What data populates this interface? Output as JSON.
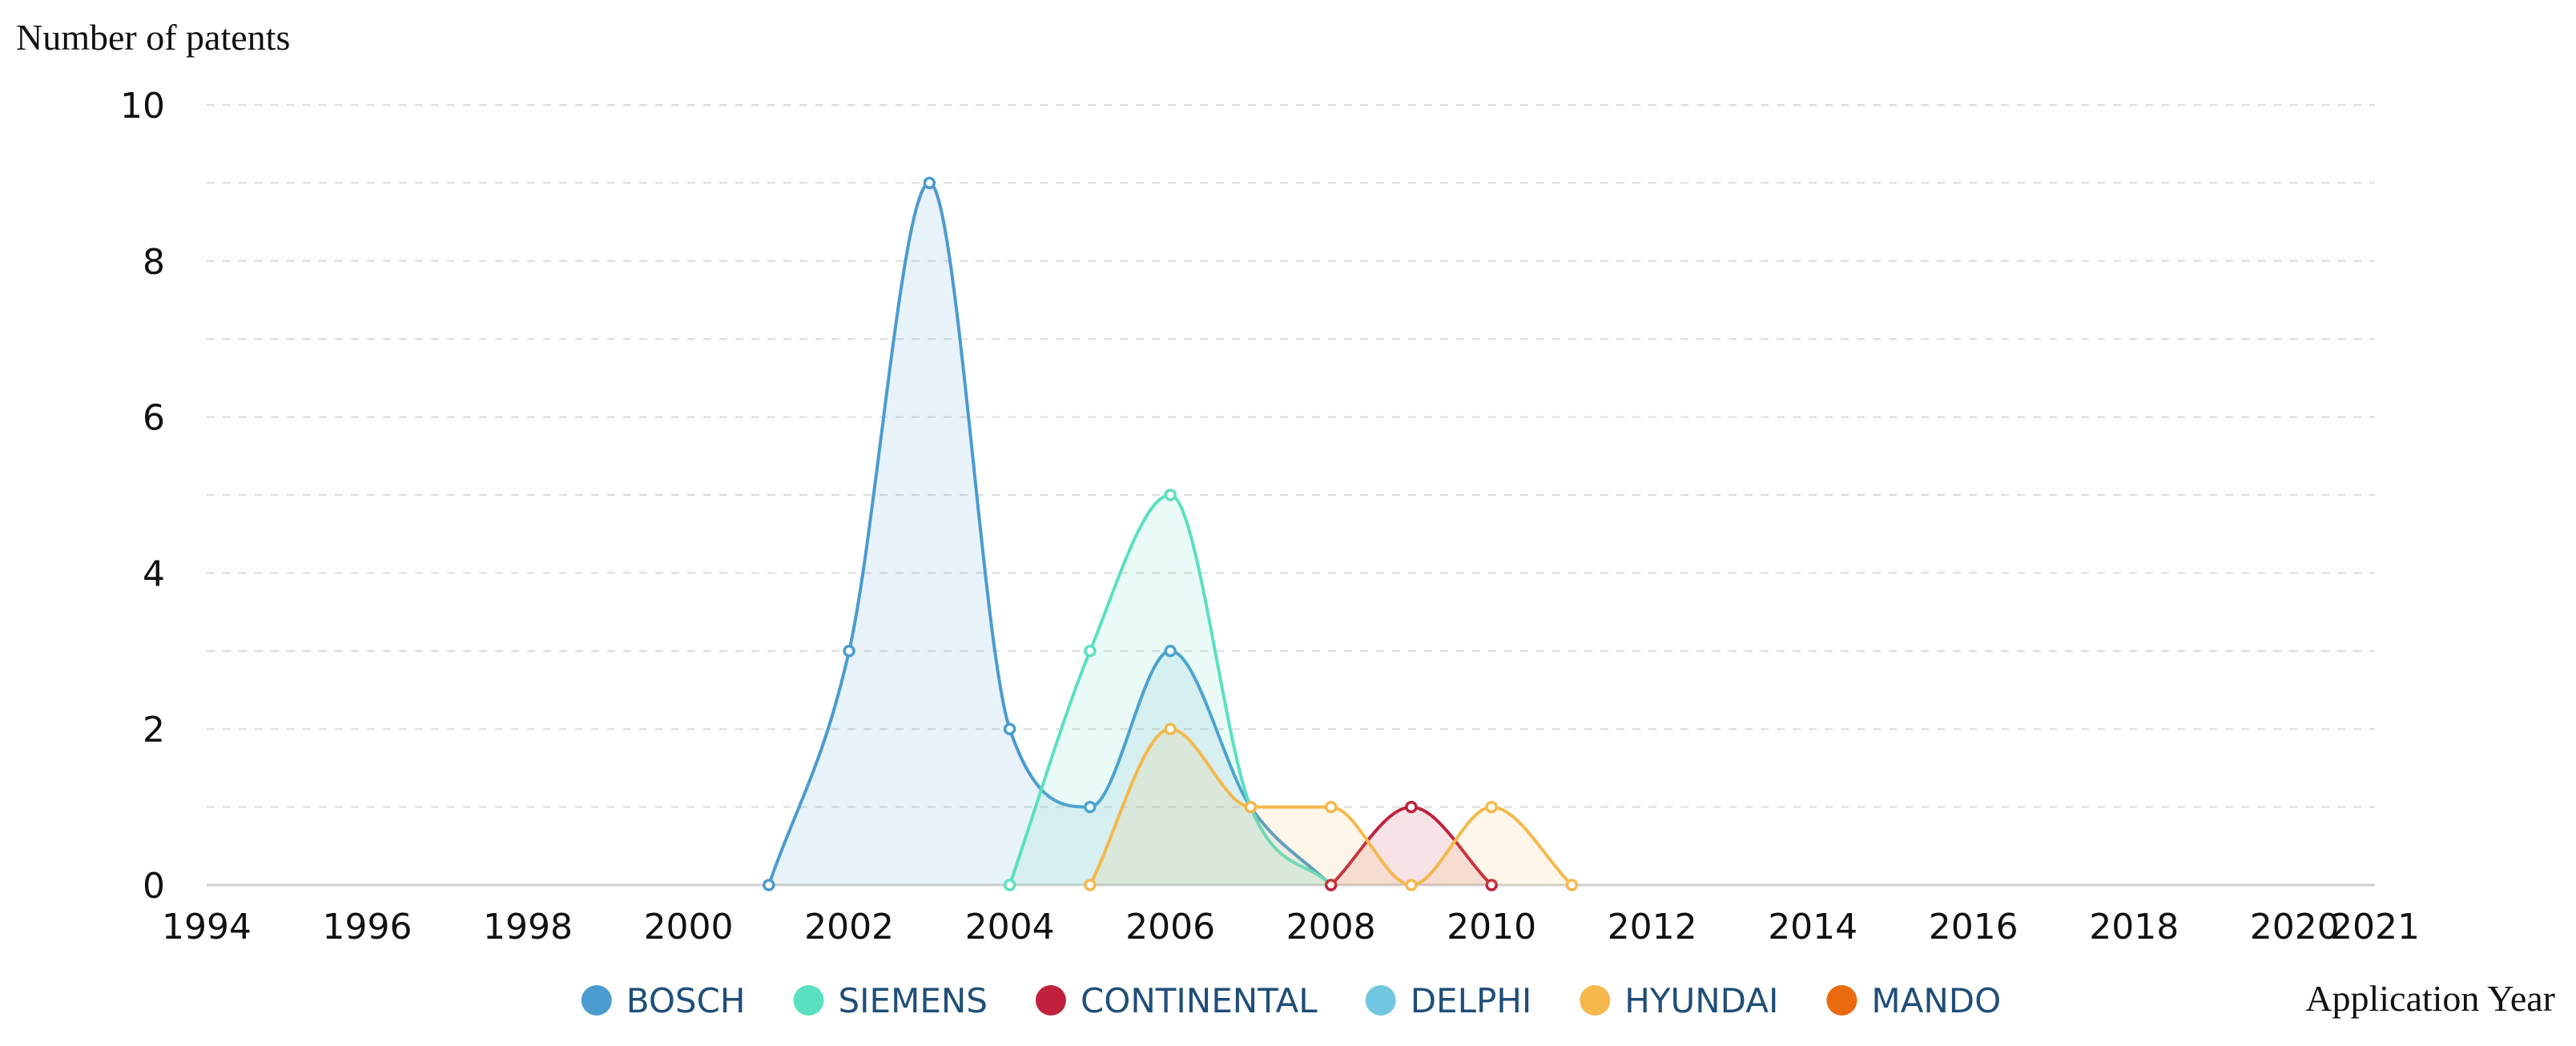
{
  "chart_data": {
    "type": "area",
    "ylabel": "Number of patents",
    "xlabel": "Application Year",
    "xlim": [
      1994,
      2021
    ],
    "ylim": [
      0,
      10
    ],
    "x_ticks": [
      1994,
      1996,
      1998,
      2000,
      2002,
      2004,
      2006,
      2008,
      2010,
      2012,
      2014,
      2016,
      2018,
      2020,
      2021
    ],
    "y_ticks": [
      0,
      2,
      4,
      6,
      8,
      10
    ],
    "grid": true,
    "legend_position": "bottom-center",
    "series": [
      {
        "name": "BOSCH",
        "color": "#4a9bd0",
        "x": [
          2001,
          2002,
          2003,
          2004,
          2005,
          2006,
          2007,
          2008
        ],
        "values": [
          0,
          3,
          9,
          2,
          1,
          3,
          1,
          0
        ]
      },
      {
        "name": "SIEMENS",
        "color": "#5ae0c0",
        "x": [
          2004,
          2005,
          2006,
          2007,
          2008
        ],
        "values": [
          0,
          3,
          5,
          1,
          0
        ]
      },
      {
        "name": "CONTINENTAL",
        "color": "#c0223e",
        "x": [
          2008,
          2009,
          2010
        ],
        "values": [
          0,
          1,
          0
        ]
      },
      {
        "name": "DELPHI",
        "color": "#72c6e0",
        "x": [],
        "values": []
      },
      {
        "name": "HYUNDAI",
        "color": "#f5b84c",
        "x": [
          2005,
          2006,
          2007,
          2008,
          2009,
          2010,
          2011
        ],
        "values": [
          0,
          2,
          1,
          1,
          0,
          1,
          0
        ]
      },
      {
        "name": "MANDO",
        "color": "#ea6a0e",
        "x": [],
        "values": []
      }
    ]
  }
}
